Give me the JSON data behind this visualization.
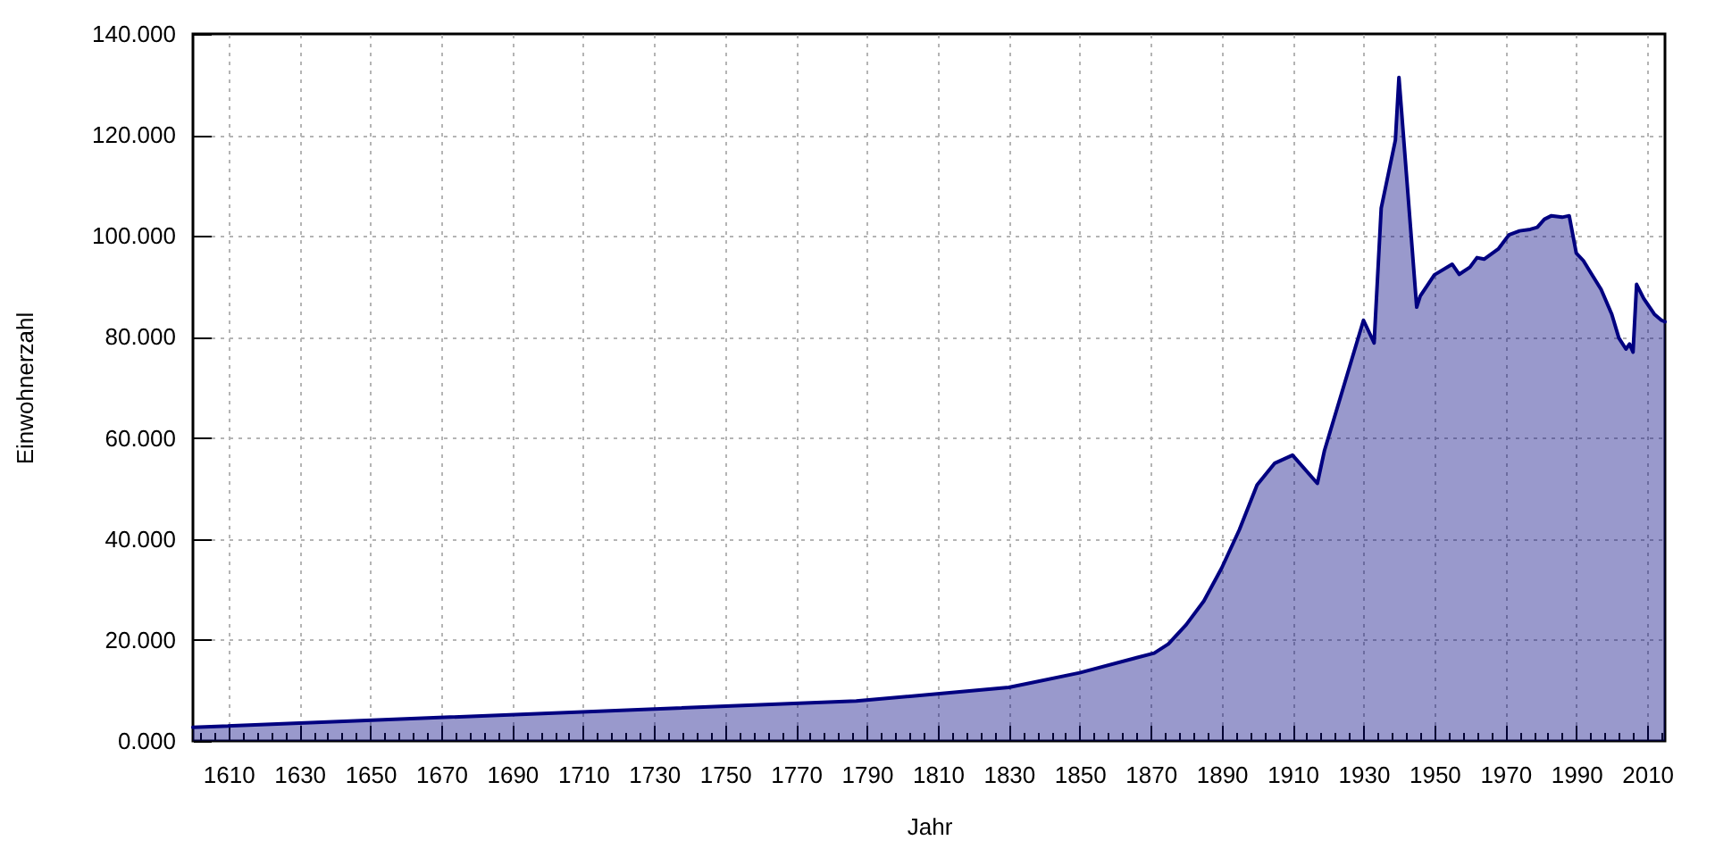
{
  "chart_data": {
    "type": "area",
    "xlabel": "Jahr",
    "ylabel": "Einwohnerzahl",
    "grid": true,
    "x": [
      1600,
      1787,
      1830,
      1850,
      1871,
      1875,
      1880,
      1885,
      1890,
      1895,
      1900,
      1905,
      1910,
      1917,
      1919,
      1930,
      1933,
      1935,
      1939,
      1940,
      1945,
      1946,
      1950,
      1955,
      1957,
      1960,
      1962,
      1964,
      1968,
      1971,
      1974,
      1977,
      1979,
      1981,
      1983,
      1986,
      1988,
      1990,
      1992,
      1994,
      1997,
      2000,
      2002,
      2004,
      2005,
      2006,
      2007,
      2009,
      2012,
      2014,
      2015
    ],
    "series": [
      {
        "color": "#000080",
        "values": [
          2.7,
          7.9,
          10.6,
          13.5,
          17.4,
          19.2,
          23.0,
          27.7,
          34.2,
          41.8,
          50.7,
          55.0,
          56.6,
          51.0,
          57.5,
          83.3,
          78.8,
          105.5,
          119.0,
          131.4,
          85.9,
          88.1,
          92.3,
          94.4,
          92.4,
          93.8,
          95.7,
          95.4,
          97.4,
          100.2,
          101.0,
          101.3,
          101.7,
          103.3,
          104.0,
          103.7,
          104.0,
          96.6,
          95.1,
          92.8,
          89.4,
          84.5,
          79.8,
          77.6,
          78.6,
          77.0,
          90.4,
          87.6,
          84.5,
          83.3,
          83.0
        ]
      }
    ],
    "xlim": [
      1600,
      2015
    ],
    "xticks": [
      {
        "value": 1602,
        "label": null
      },
      {
        "value": 1606,
        "label": null
      },
      1610,
      {
        "value": 1614,
        "label": null
      },
      {
        "value": 1618,
        "label": null
      },
      {
        "value": 1622,
        "label": null
      },
      {
        "value": 1626,
        "label": null
      },
      1630,
      {
        "value": 1634,
        "label": null
      },
      {
        "value": 1638,
        "label": null
      },
      {
        "value": 1642,
        "label": null
      },
      {
        "value": 1646,
        "label": null
      },
      1650,
      {
        "value": 1654,
        "label": null
      },
      {
        "value": 1658,
        "label": null
      },
      {
        "value": 1662,
        "label": null
      },
      {
        "value": 1666,
        "label": null
      },
      1670,
      {
        "value": 1674,
        "label": null
      },
      {
        "value": 1678,
        "label": null
      },
      {
        "value": 1682,
        "label": null
      },
      {
        "value": 1686,
        "label": null
      },
      1690,
      {
        "value": 1694,
        "label": null
      },
      {
        "value": 1698,
        "label": null
      },
      {
        "value": 1702,
        "label": null
      },
      {
        "value": 1706,
        "label": null
      },
      1710,
      {
        "value": 1714,
        "label": null
      },
      {
        "value": 1718,
        "label": null
      },
      {
        "value": 1722,
        "label": null
      },
      {
        "value": 1726,
        "label": null
      },
      1730,
      {
        "value": 1734,
        "label": null
      },
      {
        "value": 1738,
        "label": null
      },
      {
        "value": 1742,
        "label": null
      },
      {
        "value": 1746,
        "label": null
      },
      1750,
      {
        "value": 1754,
        "label": null
      },
      {
        "value": 1758,
        "label": null
      },
      {
        "value": 1762,
        "label": null
      },
      {
        "value": 1766,
        "label": null
      },
      1770,
      {
        "value": 1774,
        "label": null
      },
      {
        "value": 1778,
        "label": null
      },
      {
        "value": 1782,
        "label": null
      },
      {
        "value": 1786,
        "label": null
      },
      1790,
      {
        "value": 1794,
        "label": null
      },
      {
        "value": 1798,
        "label": null
      },
      {
        "value": 1802,
        "label": null
      },
      {
        "value": 1806,
        "label": null
      },
      1810,
      {
        "value": 1814,
        "label": null
      },
      {
        "value": 1818,
        "label": null
      },
      {
        "value": 1822,
        "label": null
      },
      {
        "value": 1826,
        "label": null
      },
      1830,
      {
        "value": 1834,
        "label": null
      },
      {
        "value": 1838,
        "label": null
      },
      {
        "value": 1842,
        "label": null
      },
      {
        "value": 1846,
        "label": null
      },
      1850,
      {
        "value": 1854,
        "label": null
      },
      {
        "value": 1858,
        "label": null
      },
      {
        "value": 1862,
        "label": null
      },
      {
        "value": 1866,
        "label": null
      },
      1870,
      {
        "value": 1874,
        "label": null
      },
      {
        "value": 1878,
        "label": null
      },
      {
        "value": 1882,
        "label": null
      },
      {
        "value": 1886,
        "label": null
      },
      1890,
      {
        "value": 1894,
        "label": null
      },
      {
        "value": 1898,
        "label": null
      },
      {
        "value": 1902,
        "label": null
      },
      {
        "value": 1906,
        "label": null
      },
      1910,
      {
        "value": 1914,
        "label": null
      },
      {
        "value": 1918,
        "label": null
      },
      {
        "value": 1922,
        "label": null
      },
      {
        "value": 1926,
        "label": null
      },
      1930,
      {
        "value": 1934,
        "label": null
      },
      {
        "value": 1938,
        "label": null
      },
      {
        "value": 1942,
        "label": null
      },
      {
        "value": 1946,
        "label": null
      },
      1950,
      {
        "value": 1954,
        "label": null
      },
      {
        "value": 1958,
        "label": null
      },
      {
        "value": 1962,
        "label": null
      },
      {
        "value": 1966,
        "label": null
      },
      1970,
      {
        "value": 1974,
        "label": null
      },
      {
        "value": 1978,
        "label": null
      },
      {
        "value": 1982,
        "label": null
      },
      {
        "value": 1986,
        "label": null
      },
      1990,
      {
        "value": 1994,
        "label": null
      },
      {
        "value": 1998,
        "label": null
      },
      {
        "value": 2002,
        "label": null
      },
      {
        "value": 2006,
        "label": null
      },
      2010,
      {
        "value": 2014,
        "label": null
      }
    ],
    "ylim": [
      0,
      140
    ],
    "yticks": [
      {
        "value": 0,
        "label": "0.000"
      },
      {
        "value": 20,
        "label": "20.000"
      },
      {
        "value": 40,
        "label": "40.000"
      },
      {
        "value": 60,
        "label": "60.000"
      },
      {
        "value": 80,
        "label": "80.000"
      },
      {
        "value": 100,
        "label": "100.000"
      },
      {
        "value": 120,
        "label": "120.000"
      },
      {
        "value": 140,
        "label": "140.000"
      }
    ]
  }
}
